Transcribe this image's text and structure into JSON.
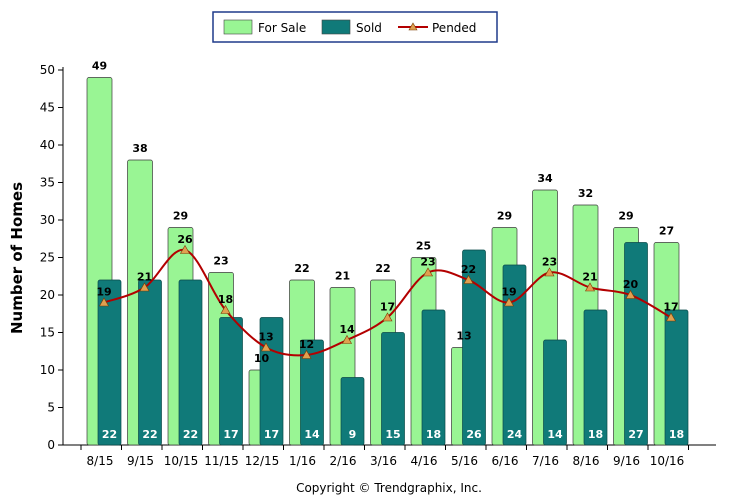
{
  "chart_data": {
    "type": "bar",
    "categories": [
      "8/15",
      "9/15",
      "10/15",
      "11/15",
      "12/15",
      "1/16",
      "2/16",
      "3/16",
      "4/16",
      "5/16",
      "6/16",
      "7/16",
      "8/16",
      "9/16",
      "10/16"
    ],
    "series": [
      {
        "name": "For Sale",
        "type": "bar",
        "color": "#99f594",
        "values": [
          49,
          38,
          29,
          23,
          10,
          22,
          21,
          22,
          25,
          13,
          29,
          34,
          32,
          29,
          27
        ]
      },
      {
        "name": "Sold",
        "type": "bar",
        "color": "#107a79",
        "values": [
          22,
          22,
          22,
          17,
          17,
          14,
          9,
          15,
          18,
          26,
          24,
          14,
          18,
          27,
          18
        ]
      },
      {
        "name": "Pended",
        "type": "line",
        "color": "#b30000",
        "marker_color": "#e0a050",
        "values": [
          19,
          21,
          26,
          18,
          13,
          12,
          14,
          17,
          23,
          22,
          19,
          23,
          21,
          20,
          17
        ]
      }
    ],
    "ylabel": "Number of Homes",
    "xlabel": "",
    "ylim": [
      0,
      50
    ],
    "yticks": [
      0,
      5,
      10,
      15,
      20,
      25,
      30,
      35,
      40,
      45,
      50
    ],
    "grid": false,
    "legend_position": "top-center"
  },
  "footer": {
    "copyright": "Copyright © Trendgraphix, Inc."
  }
}
